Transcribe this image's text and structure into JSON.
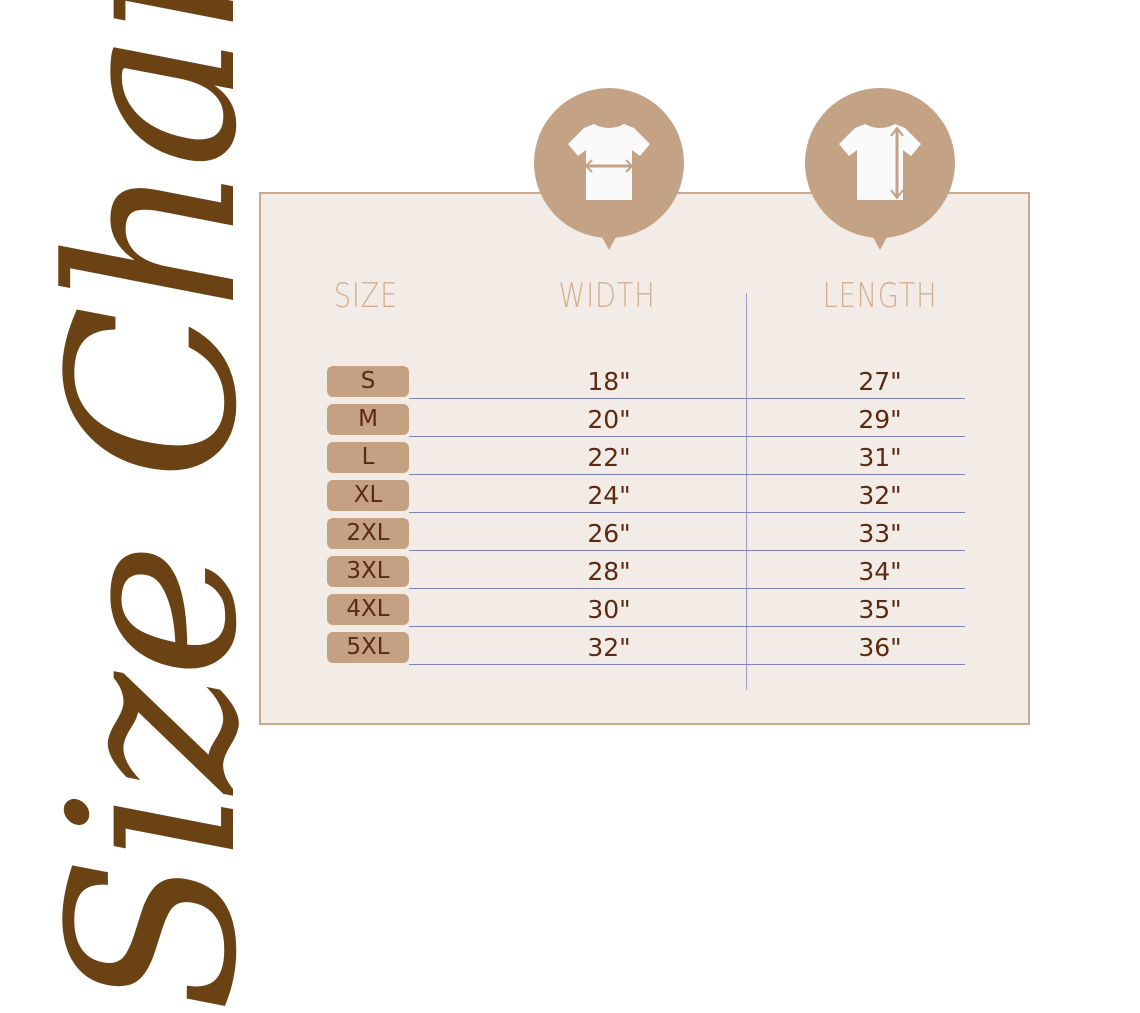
{
  "title": "Size Chart",
  "headers": {
    "size": "SIZE",
    "width": "WIDTH",
    "length": "LENGTH"
  },
  "icons": [
    "tshirt-width-icon",
    "tshirt-length-icon"
  ],
  "colors": {
    "title": "#6b4214",
    "panel": "#f3ece6",
    "accent": "#c4a286",
    "text": "#5a2a12",
    "header": "#d1af8f"
  },
  "rows": [
    {
      "size": "S",
      "width": "18\"",
      "length": "27\""
    },
    {
      "size": "M",
      "width": "20\"",
      "length": "29\""
    },
    {
      "size": "L",
      "width": "22\"",
      "length": "31\""
    },
    {
      "size": "XL",
      "width": "24\"",
      "length": "32\""
    },
    {
      "size": "2XL",
      "width": "26\"",
      "length": "33\""
    },
    {
      "size": "3XL",
      "width": "28\"",
      "length": "34\""
    },
    {
      "size": "4XL",
      "width": "30\"",
      "length": "35\""
    },
    {
      "size": "5XL",
      "width": "32\"",
      "length": "36\""
    }
  ]
}
